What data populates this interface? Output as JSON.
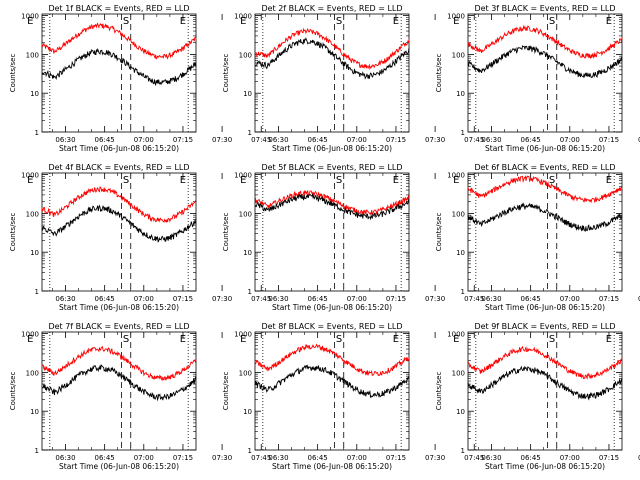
{
  "colors": {
    "events": "#000000",
    "lld": "#ff0000",
    "axis": "#000000",
    "background": "#ffffff"
  },
  "common": {
    "xlabel": "Start Time (06-Jun-08 06:15:20)",
    "ylabel": "Counts/sec",
    "x_tick_labels": [
      "06:30",
      "06:45",
      "07:00",
      "07:15",
      "07:30",
      "07:45"
    ],
    "y_tick_labels": [
      "1",
      "10",
      "100",
      "1000"
    ],
    "x_range_minutes": [
      6,
      65
    ],
    "y_range": [
      1,
      1100
    ],
    "y_scale": "log",
    "series_names": [
      "Events",
      "LLD"
    ]
  },
  "chart_data": [
    {
      "type": "line",
      "title": "Det 1f BLACK = Events, RED = LLD",
      "markers": [
        "E",
        "S",
        "E"
      ],
      "lld_base": 220,
      "events_base": 48,
      "amp": 0.4,
      "phase": 0.0
    },
    {
      "type": "line",
      "title": "Det 2f BLACK = Events, RED = LLD",
      "markers": [
        "E",
        "S",
        "E"
      ],
      "lld_base": 140,
      "events_base": 80,
      "amp": 0.45,
      "phase": 0.05
    },
    {
      "type": "line",
      "title": "Det 3f BLACK = Events, RED = LLD",
      "markers": [
        "E",
        "S",
        "E"
      ],
      "lld_base": 210,
      "events_base": 65,
      "amp": 0.35,
      "phase": 0.0
    },
    {
      "type": "line",
      "title": "Det 4f BLACK = Events, RED = LLD",
      "markers": [
        "E",
        "S",
        "E"
      ],
      "lld_base": 170,
      "events_base": 55,
      "amp": 0.4,
      "phase": 0.0
    },
    {
      "type": "line",
      "title": "Det 5f BLACK = Events, RED = LLD",
      "markers": [
        "E",
        "S",
        "E"
      ],
      "lld_base": 190,
      "events_base": 150,
      "amp": 0.25,
      "phase": 0.05
    },
    {
      "type": "line",
      "title": "Det 6f BLACK = Events, RED = LLD",
      "markers": [
        "E",
        "S",
        "E"
      ],
      "lld_base": 420,
      "events_base": 80,
      "amp": 0.28,
      "phase": 0.0
    },
    {
      "type": "line",
      "title": "Det 7f BLACK = Events, RED = LLD",
      "markers": [
        "E",
        "S",
        "E"
      ],
      "lld_base": 170,
      "events_base": 55,
      "amp": 0.38,
      "phase": 0.0
    },
    {
      "type": "line",
      "title": "Det 8f BLACK = Events, RED = LLD",
      "markers": [
        "E",
        "S",
        "E"
      ],
      "lld_base": 210,
      "events_base": 60,
      "amp": 0.35,
      "phase": 0.0
    },
    {
      "type": "line",
      "title": "Det 9f BLACK = Events, RED = LLD",
      "markers": [
        "E",
        "S",
        "E"
      ],
      "lld_base": 180,
      "events_base": 55,
      "amp": 0.35,
      "phase": 0.0
    }
  ]
}
